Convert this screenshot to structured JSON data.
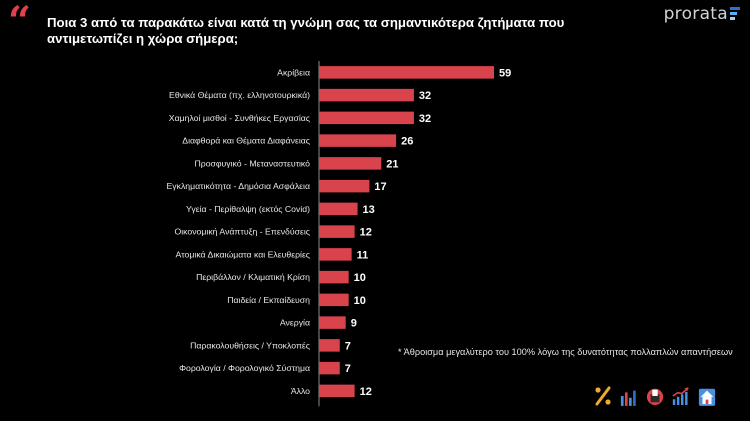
{
  "header": {
    "quote_mark": "“",
    "title": "Ποια 3 από τα παρακάτω είναι κατά τη γνώμη σας τα σημαντικότερα ζητήματα που αντιμετωπίζει η χώρα σήμερα;",
    "logo": "prorata"
  },
  "footnote": "* Άθροισμα μεγαλύτερο του 100% λόγω της δυνατότητας πολλαπλών απαντήσεων",
  "colors": {
    "bar": "#d9434b",
    "accent": "#e0414a",
    "axis": "#8a8a8a"
  },
  "icons": [
    "percent-icon",
    "bar-chart-icon",
    "ballot-box-icon",
    "trend-chart-icon",
    "house-icon"
  ],
  "chart_data": {
    "type": "bar",
    "orientation": "horizontal",
    "title": "Ποια 3 από τα παρακάτω είναι κατά τη γνώμη σας τα σημαντικότερα ζητήματα που αντιμετωπίζει η χώρα σήμερα;",
    "categories": [
      "Ακρίβεια",
      "Εθνικά Θέματα (πχ. ελληνοτουρκικά)",
      "Χαμηλοί μισθοί - Συνθήκες Εργασίας",
      "Διαφθορά και Θέματα Διαφάνειας",
      "Προσφυγικό - Μεταναστευτικό",
      "Εγκληματικότητα - Δημόσια Ασφάλεια",
      "Υγεία - Περίθαλψη (εκτός Covid)",
      "Οικονομική Ανάπτυξη - Επενδύσεις",
      "Ατομικά Δικαιώματα και Ελευθερίες",
      "Περιβάλλον / Κλιματική Κρίση",
      "Παιδεία / Εκπαίδευση",
      "Ανεργία",
      "Παρακολουθήσεις / Υποκλοπές",
      "Φορολογία / Φορολογικό Σύστημα",
      "Άλλο"
    ],
    "values": [
      59,
      32,
      32,
      26,
      21,
      17,
      13,
      12,
      11,
      10,
      10,
      9,
      7,
      7,
      12
    ],
    "xlim": [
      0,
      60
    ],
    "xlabel": "",
    "ylabel": "",
    "grid": false,
    "legend": "none"
  }
}
